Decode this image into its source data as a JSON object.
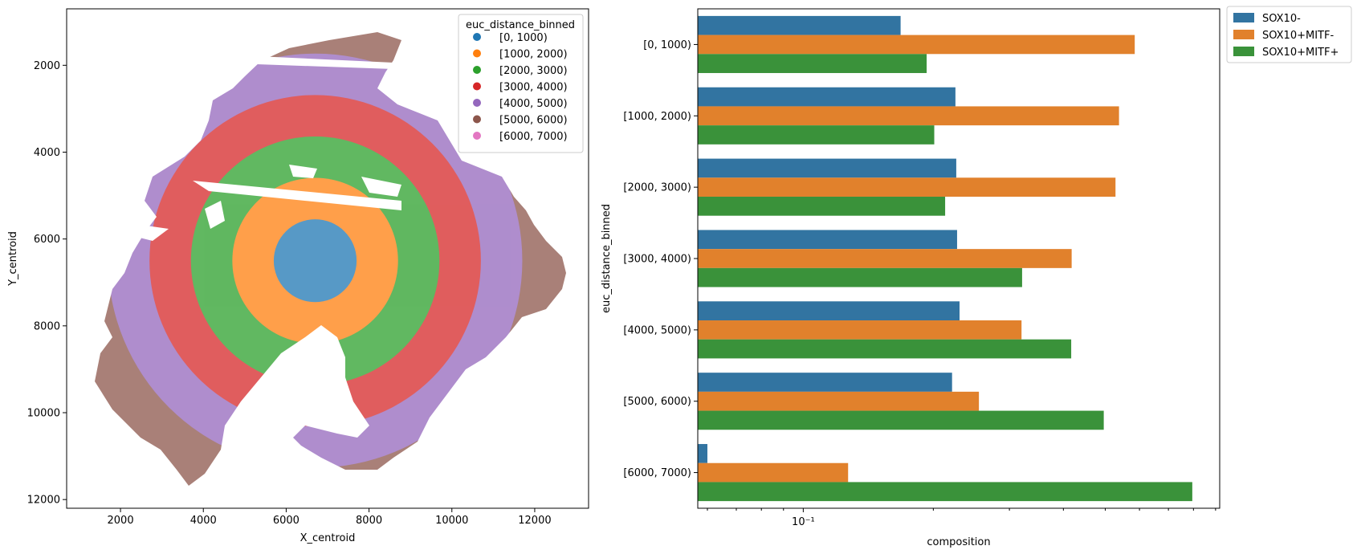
{
  "chart_data": [
    {
      "type": "scatter",
      "xlabel": "X_centroid",
      "ylabel": "Y_centroid",
      "xlim": [
        700,
        13300
      ],
      "ylim": [
        12200,
        700
      ],
      "y_inverted": true,
      "xticks": [
        2000,
        4000,
        6000,
        8000,
        10000,
        12000
      ],
      "yticks": [
        2000,
        4000,
        6000,
        8000,
        10000,
        12000
      ],
      "legend": {
        "title": "euc_distance_binned",
        "placement": "top-right",
        "entries": [
          "[0, 1000)",
          "[1000, 2000)",
          "[2000, 3000)",
          "[3000, 4000)",
          "[4000, 5000)",
          "[5000, 6000)",
          "[6000, 7000)"
        ],
        "colors": [
          "#1f77b4",
          "#ff7f0e",
          "#2ca02c",
          "#d62728",
          "#9467bd",
          "#8c564b",
          "#e377c2"
        ]
      },
      "center": [
        6700,
        6500
      ],
      "bin_width": 1000
    },
    {
      "type": "bar",
      "orientation": "horizontal",
      "xscale": "log",
      "xlabel": "composition",
      "ylabel": "euc_distance_binned",
      "xlim": [
        0.057,
        0.92
      ],
      "xticks": [
        0.1
      ],
      "xtick_labels": [
        "10⁻¹"
      ],
      "legend_placement": "outside-right",
      "categories": [
        "[0, 1000)",
        "[1000, 2000)",
        "[2000, 3000)",
        "[3000, 4000)",
        "[4000, 5000)",
        "[5000, 6000)",
        "[6000, 7000)"
      ],
      "series": [
        {
          "name": "SOX10-",
          "color": "#3274a1",
          "values": [
            0.168,
            0.225,
            0.226,
            0.227,
            0.23,
            0.221,
            0.06
          ]
        },
        {
          "name": "SOX10+MITF-",
          "color": "#e1812c",
          "values": [
            0.585,
            0.538,
            0.528,
            0.418,
            0.32,
            0.255,
            0.127
          ]
        },
        {
          "name": "SOX10+MITF+",
          "color": "#3a923a",
          "values": [
            0.193,
            0.201,
            0.213,
            0.321,
            0.417,
            0.496,
            0.795
          ]
        }
      ]
    }
  ]
}
